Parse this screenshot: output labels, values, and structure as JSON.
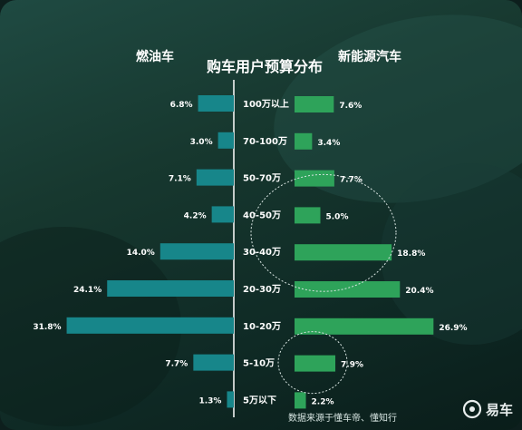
{
  "chart_data": {
    "type": "bar",
    "title": "购车用户预算分布",
    "categories": [
      "100万以上",
      "70-100万",
      "50-70万",
      "40-50万",
      "30-40万",
      "20-30万",
      "10-20万",
      "5-10万",
      "5万以下"
    ],
    "series": [
      {
        "name": "燃油车",
        "values": [
          6.8,
          3.0,
          7.1,
          4.2,
          14.0,
          24.1,
          31.8,
          7.7,
          1.3
        ],
        "color": "#17868a"
      },
      {
        "name": "新能源汽车",
        "values": [
          7.6,
          3.4,
          7.7,
          5.0,
          18.8,
          20.4,
          26.9,
          7.9,
          2.2
        ],
        "color": "#2ea35a"
      }
    ],
    "value_suffix": "%",
    "highlighted_categories": [
      "40-50万",
      "30-40万",
      "5-10万"
    ],
    "legend_placement": "top",
    "grid": false
  },
  "source_text": "数据来源于懂车帝、懂知行",
  "logo_text": "易车",
  "colors": {
    "background": "#17382f",
    "axis": "#ffffff",
    "text": "#ffffff"
  }
}
